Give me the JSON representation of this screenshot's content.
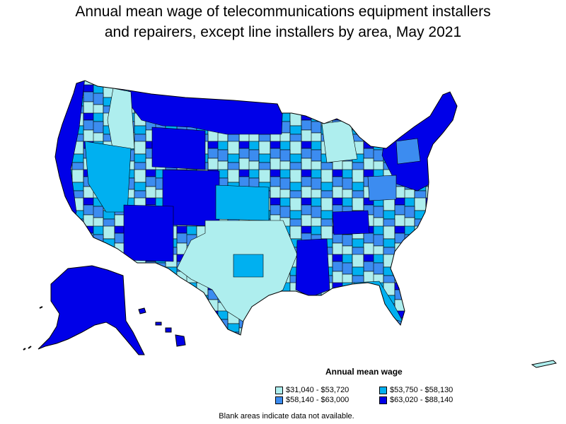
{
  "title_line1": "Annual mean wage of telecommunications equipment installers",
  "title_line2": "and repairers, except line installers by area, May 2021",
  "legend": {
    "title": "Annual mean wage",
    "items": [
      {
        "label": "$31,040 - $53,720",
        "color": "#aeeeee"
      },
      {
        "label": "$53,750 - $58,130",
        "color": "#00b0f0"
      },
      {
        "label": "$58,140 - $63,000",
        "color": "#3c8cf0"
      },
      {
        "label": "$63,020 - $88,140",
        "color": "#0000e8"
      }
    ]
  },
  "note": "Blank areas indicate data not available."
}
